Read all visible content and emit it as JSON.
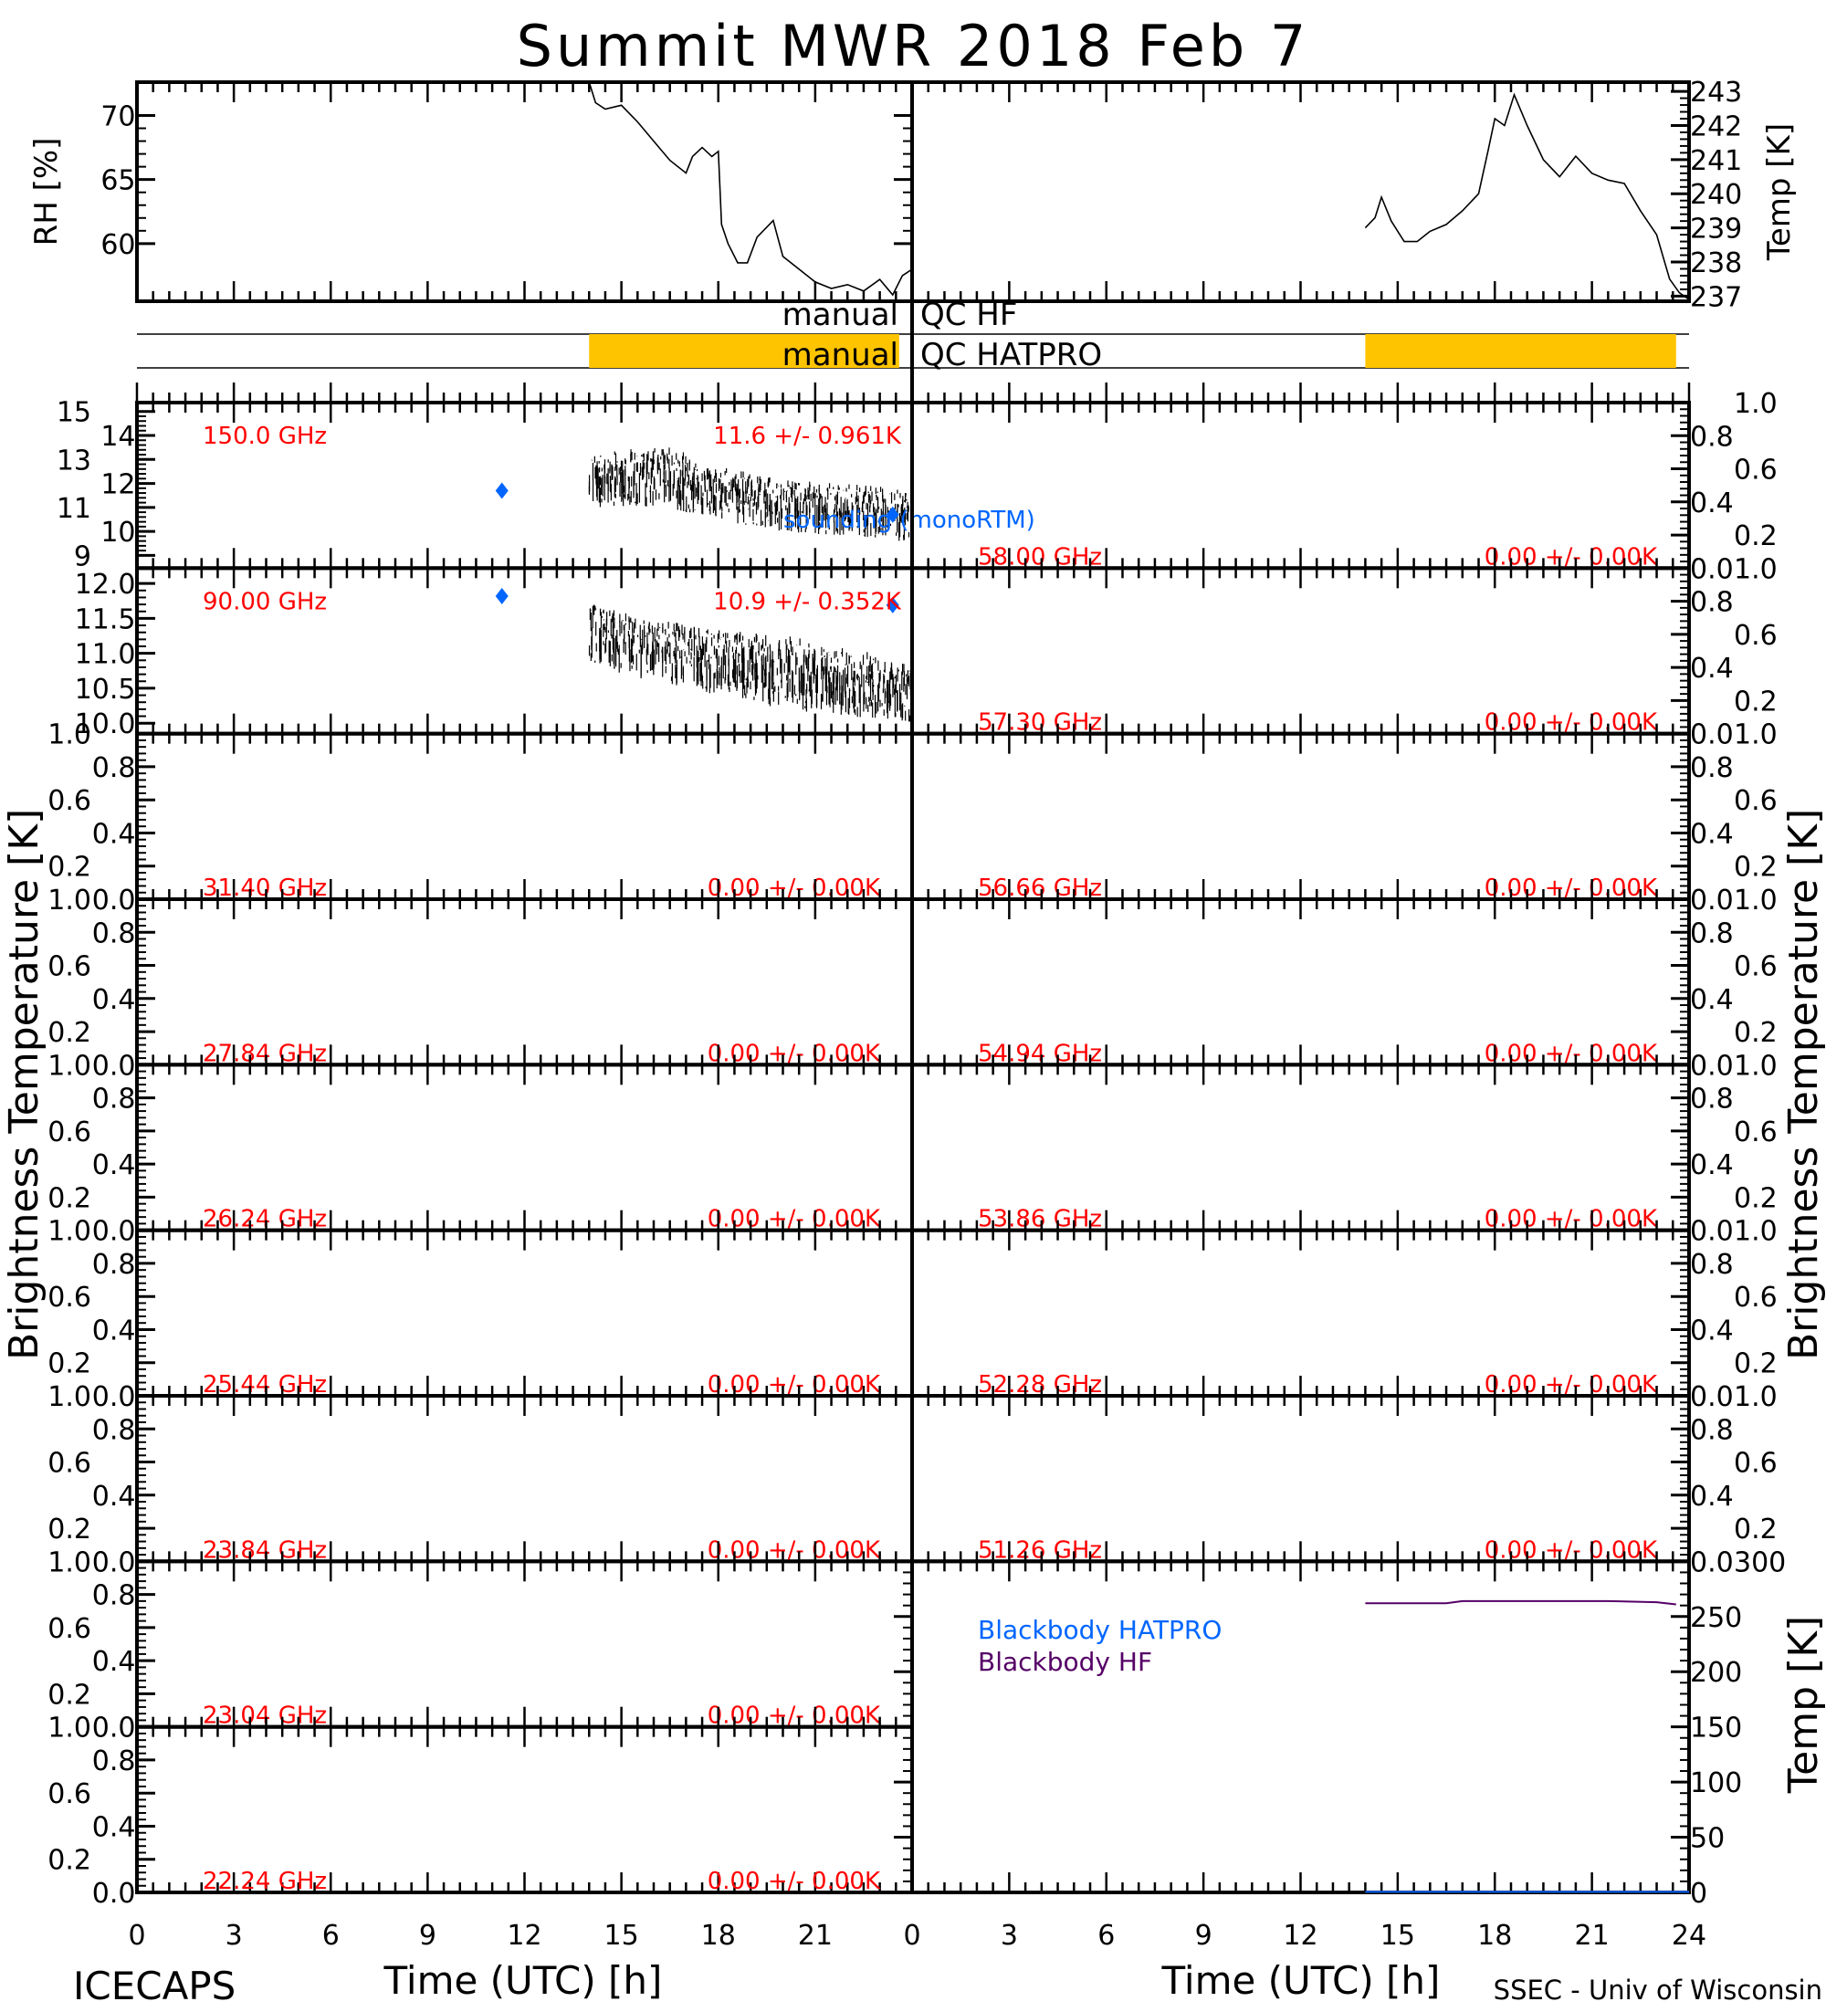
{
  "title": "Summit MWR 2018 Feb  7",
  "footer": {
    "left": "ICECAPS",
    "right": "SSEC - Univ of Wisconsin"
  },
  "colors": {
    "channel_label": "#ff0000",
    "sounding": "#0066ff",
    "blackbody_hatpro": "#0066ff",
    "blackbody_hf": "#550066",
    "qc_flag": "#ffc400",
    "data": "#000000"
  },
  "qc": {
    "hf_label_left": "manual",
    "hf_label_right": "QC HF",
    "hatpro_label_left": "manual",
    "hatpro_label_right": "QC HATPRO",
    "hf_flagged_hours": [],
    "hatpro_flagged_hours_left": [
      14.0,
      23.6
    ],
    "hatpro_flagged_hours_right": [
      14.0,
      23.6
    ]
  },
  "chart_data": [
    {
      "type": "line",
      "id": "rh",
      "ylabel": "RH [%]",
      "ylim": [
        55.5,
        72.6
      ],
      "yticks": [
        60,
        65,
        70
      ],
      "xlim": [
        0,
        24
      ],
      "x": [
        14.0,
        14.2,
        14.5,
        15.0,
        15.5,
        16.0,
        16.5,
        17.0,
        17.2,
        17.5,
        17.8,
        18.0,
        18.1,
        18.3,
        18.6,
        18.9,
        19.2,
        19.7,
        20.0,
        20.5,
        21.0,
        21.5,
        22.0,
        22.5,
        23.0,
        23.4,
        23.7,
        24.0
      ],
      "y": [
        72.6,
        71.0,
        70.5,
        70.8,
        69.5,
        68.0,
        66.5,
        65.5,
        66.8,
        67.5,
        66.8,
        67.2,
        61.5,
        60.0,
        58.5,
        58.5,
        60.5,
        61.8,
        59.0,
        58.0,
        57.0,
        56.5,
        56.8,
        56.3,
        57.2,
        56.0,
        57.5,
        58.0
      ]
    },
    {
      "type": "line",
      "id": "temp",
      "ylabel": "Temp [K]",
      "ylim": [
        236.85,
        243.27
      ],
      "yticks": [
        237,
        238,
        239,
        240,
        241,
        242,
        243
      ],
      "xlim": [
        0,
        24
      ],
      "x": [
        14.0,
        14.3,
        14.5,
        14.8,
        15.2,
        15.6,
        16.0,
        16.5,
        17.0,
        17.5,
        17.8,
        18.0,
        18.3,
        18.6,
        19.0,
        19.5,
        20.0,
        20.5,
        21.0,
        21.5,
        22.0,
        22.5,
        23.0,
        23.4,
        23.7,
        24.0
      ],
      "y": [
        239.0,
        239.3,
        239.9,
        239.2,
        238.6,
        238.6,
        238.9,
        239.1,
        239.5,
        240.0,
        241.3,
        242.2,
        242.0,
        242.9,
        242.0,
        241.0,
        240.5,
        241.1,
        240.6,
        240.4,
        240.3,
        239.5,
        238.8,
        237.5,
        237.1,
        236.9
      ]
    },
    {
      "type": "scatter",
      "id": "tb-left",
      "ylabel": "Brightness Temperature [K]",
      "xlabel": "Time (UTC) [h]",
      "xlim": [
        0,
        24
      ],
      "xticks": [
        0,
        3,
        6,
        9,
        12,
        15,
        18,
        21
      ],
      "sounding_label": "sounding (monoRTM)",
      "channels": [
        {
          "label": "150.0 GHz",
          "stats": "11.6 +/- 0.961K",
          "ylim": [
            8.47,
            15.37
          ],
          "yticks": [
            9,
            10,
            11,
            12,
            13,
            14,
            15
          ],
          "tick_labels": [
            "9",
            "10",
            "11",
            "12",
            "13",
            "14",
            "15"
          ],
          "bins_hours": [
            14,
            15,
            16,
            17,
            18,
            19,
            20,
            21,
            22,
            23,
            24
          ],
          "low": [
            11.0,
            11.0,
            11.0,
            10.8,
            10.5,
            10.2,
            10.0,
            9.9,
            9.8,
            9.7,
            9.5
          ],
          "high": [
            13.6,
            13.8,
            14.0,
            13.6,
            13.0,
            12.8,
            12.5,
            12.4,
            12.3,
            12.2,
            12.0
          ],
          "sounding": [
            {
              "x": 11.3,
              "y": 11.7
            },
            {
              "x": 23.4,
              "y": 10.7
            }
          ]
        },
        {
          "label": "90.00 GHz",
          "stats": "10.9 +/- 0.352K",
          "ylim": [
            9.85,
            12.22
          ],
          "yticks": [
            10.0,
            10.5,
            11.0,
            11.5,
            12.0
          ],
          "tick_labels": [
            "10.0",
            "10.5",
            "11.0",
            "11.5",
            "12.0"
          ],
          "bins_hours": [
            14,
            15,
            16,
            17,
            18,
            19,
            20,
            21,
            22,
            23,
            24
          ],
          "low": [
            10.9,
            10.7,
            10.6,
            10.5,
            10.4,
            10.3,
            10.2,
            10.15,
            10.1,
            10.05,
            10.0
          ],
          "high": [
            11.9,
            11.7,
            11.6,
            11.55,
            11.5,
            11.45,
            11.4,
            11.3,
            11.2,
            11.1,
            11.0
          ],
          "sounding": [
            {
              "x": 11.3,
              "y": 11.82
            },
            {
              "x": 23.4,
              "y": 11.69
            }
          ]
        },
        {
          "label": "31.40 GHz",
          "stats": "0.00 +/- 0.00K",
          "ylim": [
            0,
            1
          ],
          "yticks": [
            0,
            0.2,
            0.4,
            0.6,
            0.8,
            1.0
          ],
          "tick_labels": [
            "0.0",
            "0.2",
            "0.4",
            "0.6",
            "0.8",
            "1.0"
          ]
        },
        {
          "label": "27.84 GHz",
          "stats": "0.00 +/- 0.00K",
          "ylim": [
            0,
            1
          ],
          "yticks": [
            0,
            0.2,
            0.4,
            0.6,
            0.8,
            1.0
          ],
          "tick_labels": [
            "0.0",
            "0.2",
            "0.4",
            "0.6",
            "0.8",
            "1.0"
          ]
        },
        {
          "label": "26.24 GHz",
          "stats": "0.00 +/- 0.00K",
          "ylim": [
            0,
            1
          ],
          "yticks": [
            0,
            0.2,
            0.4,
            0.6,
            0.8,
            1.0
          ],
          "tick_labels": [
            "0.0",
            "0.2",
            "0.4",
            "0.6",
            "0.8",
            "1.0"
          ]
        },
        {
          "label": "25.44 GHz",
          "stats": "0.00 +/- 0.00K",
          "ylim": [
            0,
            1
          ],
          "yticks": [
            0,
            0.2,
            0.4,
            0.6,
            0.8,
            1.0
          ],
          "tick_labels": [
            "0.0",
            "0.2",
            "0.4",
            "0.6",
            "0.8",
            "1.0"
          ]
        },
        {
          "label": "23.84 GHz",
          "stats": "0.00 +/- 0.00K",
          "ylim": [
            0,
            1
          ],
          "yticks": [
            0,
            0.2,
            0.4,
            0.6,
            0.8,
            1.0
          ],
          "tick_labels": [
            "0.0",
            "0.2",
            "0.4",
            "0.6",
            "0.8",
            "1.0"
          ]
        },
        {
          "label": "23.04 GHz",
          "stats": "0.00 +/- 0.00K",
          "ylim": [
            0,
            1
          ],
          "yticks": [
            0,
            0.2,
            0.4,
            0.6,
            0.8,
            1.0
          ],
          "tick_labels": [
            "0.0",
            "0.2",
            "0.4",
            "0.6",
            "0.8",
            "1.0"
          ]
        },
        {
          "label": "22.24 GHz",
          "stats": "0.00 +/- 0.00K",
          "ylim": [
            0,
            1
          ],
          "yticks": [
            0,
            0.2,
            0.4,
            0.6,
            0.8,
            1.0
          ],
          "tick_labels": [
            "0.0",
            "0.2",
            "0.4",
            "0.6",
            "0.8",
            "1.0"
          ]
        }
      ]
    },
    {
      "type": "scatter",
      "id": "tb-right",
      "ylabel": "Brightness Temperature [K]",
      "xlabel": "Time (UTC) [h]",
      "xlim": [
        0,
        24
      ],
      "xticks": [
        0,
        3,
        6,
        9,
        12,
        15,
        18,
        21,
        24
      ],
      "channels": [
        {
          "label": "58.00 GHz",
          "stats": "0.00 +/- 0.00K",
          "ylim": [
            0,
            1
          ],
          "tick_labels": [
            "0.0",
            "0.2",
            "0.4",
            "0.6",
            "0.8",
            "1.0"
          ]
        },
        {
          "label": "57.30 GHz",
          "stats": "0.00 +/- 0.00K",
          "ylim": [
            0,
            1
          ],
          "tick_labels": [
            "0.0",
            "0.2",
            "0.4",
            "0.6",
            "0.8",
            "1.0"
          ]
        },
        {
          "label": "56.66 GHz",
          "stats": "0.00 +/- 0.00K",
          "ylim": [
            0,
            1
          ],
          "tick_labels": [
            "0.0",
            "0.2",
            "0.4",
            "0.6",
            "0.8",
            "1.0"
          ]
        },
        {
          "label": "54.94 GHz",
          "stats": "0.00 +/- 0.00K",
          "ylim": [
            0,
            1
          ],
          "tick_labels": [
            "0.0",
            "0.2",
            "0.4",
            "0.6",
            "0.8",
            "1.0"
          ]
        },
        {
          "label": "53.86 GHz",
          "stats": "0.00 +/- 0.00K",
          "ylim": [
            0,
            1
          ],
          "tick_labels": [
            "0.0",
            "0.2",
            "0.4",
            "0.6",
            "0.8",
            "1.0"
          ]
        },
        {
          "label": "52.28 GHz",
          "stats": "0.00 +/- 0.00K",
          "ylim": [
            0,
            1
          ],
          "tick_labels": [
            "0.0",
            "0.2",
            "0.4",
            "0.6",
            "0.8",
            "1.0"
          ]
        },
        {
          "label": "51.26 GHz",
          "stats": "0.00 +/- 0.00K",
          "ylim": [
            0,
            1
          ],
          "tick_labels": [
            "0.0",
            "0.2",
            "0.4",
            "0.6",
            "0.8",
            "1.0"
          ]
        }
      ]
    },
    {
      "type": "line",
      "id": "blackbody",
      "ylabel": "Temp [K]",
      "ylim": [
        0,
        300
      ],
      "yticks": [
        0,
        50,
        100,
        150,
        200,
        250,
        300
      ],
      "xlim": [
        0,
        24
      ],
      "series": [
        {
          "name": "Blackbody HATPRO",
          "x": [
            14.0,
            24.0
          ],
          "y": [
            0.5,
            0.5
          ]
        },
        {
          "name": "Blackbody HF",
          "x": [
            14.0,
            16.5,
            17.0,
            21.5,
            23.0,
            23.6
          ],
          "y": [
            262,
            262,
            264,
            264,
            263,
            261
          ]
        }
      ]
    }
  ]
}
